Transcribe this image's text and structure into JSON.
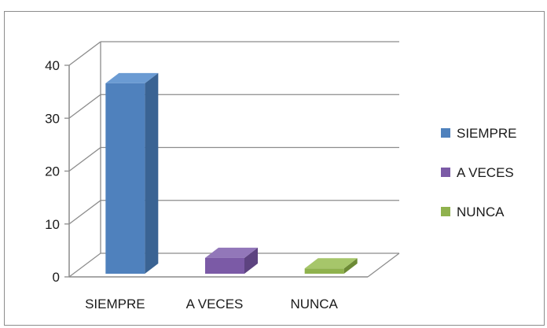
{
  "chart_data": {
    "type": "bar",
    "categories": [
      "SIEMPRE",
      "A VECES",
      "NUNCA"
    ],
    "values": [
      36,
      3,
      1
    ],
    "ylim": [
      0,
      40
    ],
    "yticks": [
      0,
      10,
      20,
      30,
      40
    ],
    "grid": true,
    "legend_placement": "right",
    "series": [
      {
        "name": "SIEMPRE",
        "value": 36,
        "color": "#4f81bd",
        "side": "#3a6393",
        "top": "#6b9bd3"
      },
      {
        "name": "A VECES",
        "value": 3,
        "color": "#7b5aa6",
        "side": "#5d4380",
        "top": "#9277b9"
      },
      {
        "name": "NUNCA",
        "value": 1,
        "color": "#8fb24d",
        "side": "#6c8a35",
        "top": "#a6c66a"
      }
    ]
  }
}
